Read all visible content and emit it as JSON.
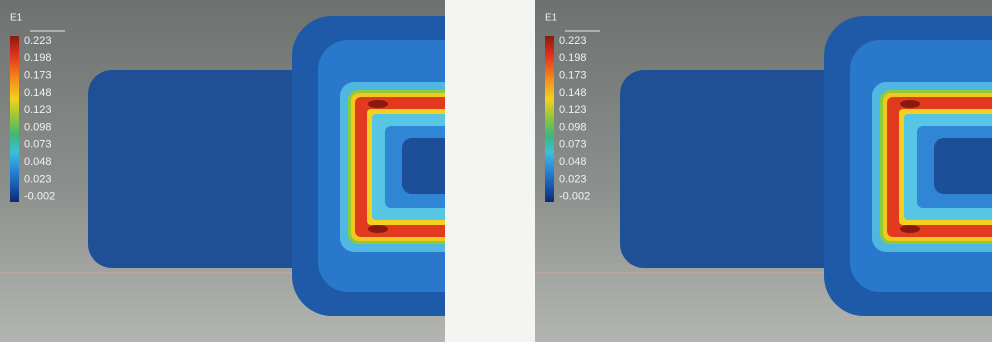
{
  "panels": [
    {
      "title": "E1",
      "legend": [
        0.223,
        0.198,
        0.173,
        0.148,
        0.123,
        0.098,
        0.073,
        0.048,
        0.023,
        -0.002
      ]
    },
    {
      "title": "E1",
      "legend": [
        0.223,
        0.198,
        0.173,
        0.148,
        0.123,
        0.098,
        0.073,
        0.048,
        0.023,
        -0.002
      ]
    }
  ]
}
